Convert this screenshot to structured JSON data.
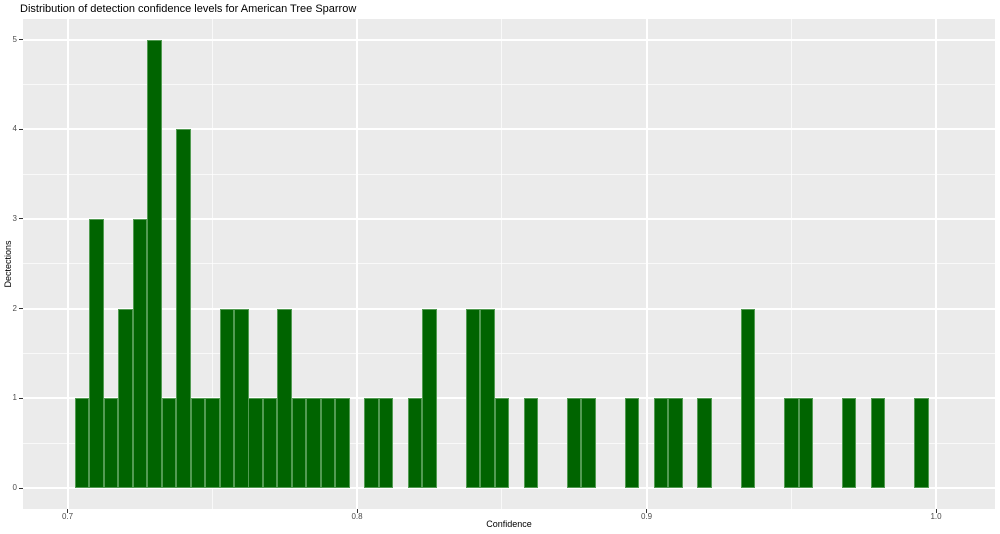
{
  "page_title": "Distribution of detection confidence levels for American Tree Sparrow",
  "chart_data": {
    "type": "bar",
    "subtype": "histogram",
    "title": "Distribution of detection confidence levels for American Tree Sparrow",
    "xlabel": "Confidence",
    "ylabel": "Dectections",
    "bin_start": 0.7025,
    "bin_width": 0.005,
    "counts": [
      1,
      3,
      1,
      2,
      3,
      5,
      1,
      4,
      1,
      1,
      2,
      2,
      1,
      1,
      2,
      1,
      1,
      1,
      1,
      0,
      1,
      1,
      0,
      1,
      2,
      0,
      0,
      2,
      2,
      1,
      0,
      1,
      0,
      0,
      1,
      1,
      0,
      0,
      1,
      0,
      1,
      1,
      0,
      1,
      0,
      0,
      2,
      0,
      0,
      1,
      1,
      0,
      0,
      1,
      0,
      1,
      0,
      0,
      1,
      0
    ],
    "total_detections": 58,
    "x_ticks": [
      {
        "value": 0.7,
        "label": "0.7"
      },
      {
        "value": 0.8,
        "label": "0.8"
      },
      {
        "value": 0.9,
        "label": "0.9"
      },
      {
        "value": 1.0,
        "label": "1.0"
      }
    ],
    "y_ticks": [
      {
        "value": 0,
        "label": "0"
      },
      {
        "value": 1,
        "label": "1"
      },
      {
        "value": 2,
        "label": "2"
      },
      {
        "value": 3,
        "label": "3"
      },
      {
        "value": 4,
        "label": "4"
      },
      {
        "value": 5,
        "label": "5"
      }
    ],
    "xlim": [
      0.685,
      1.021
    ],
    "ylim": [
      -0.25,
      5.25
    ],
    "grid": "major-and-minor",
    "legend_position": "none",
    "colors": {
      "bar_fill": "#006400",
      "bar_edge": "#96c896",
      "panel_background": "#ebebeb",
      "gridline": "#ffffff",
      "tick_text": "#4d4d4d",
      "tick_mark": "#333333",
      "title_text": "#000000",
      "figure_background": "#ffffff"
    }
  }
}
